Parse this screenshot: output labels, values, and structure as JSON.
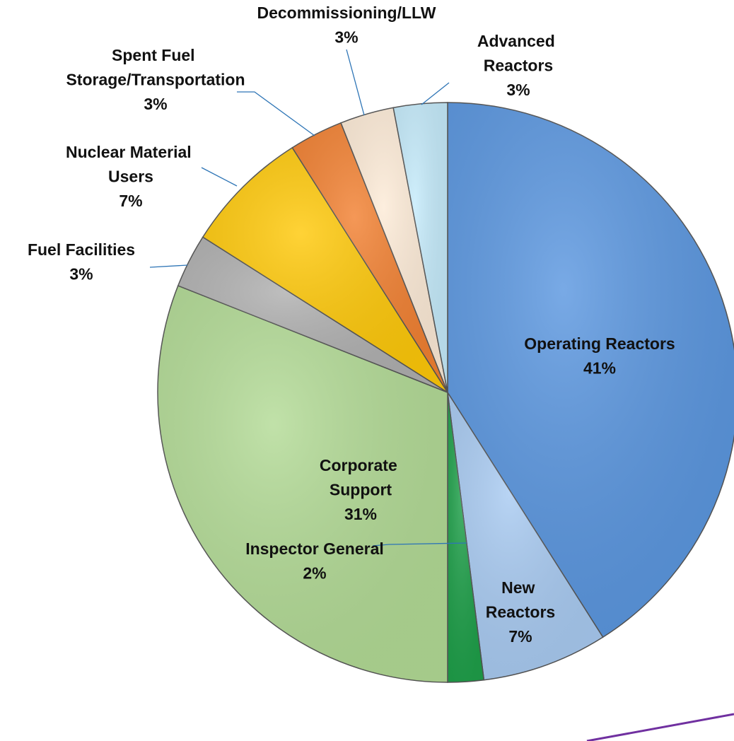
{
  "chart_data": {
    "type": "pie",
    "categories": [
      "Operating Reactors",
      "New Reactors",
      "Inspector General",
      "Corporate Support",
      "Fuel Facilities",
      "Nuclear Material Users",
      "Spent Fuel Storage/Transportation",
      "Decommissioning/LLW",
      "Advanced Reactors"
    ],
    "values": [
      41,
      7,
      2,
      31,
      3,
      7,
      3,
      3,
      3
    ],
    "value_labels": [
      "41%",
      "7%",
      "2%",
      "31%",
      "3%",
      "7%",
      "3%",
      "3%",
      "3%"
    ],
    "colors": [
      "#5b97e0",
      "#a9cbf2",
      "#1fa04a",
      "#b3db96",
      "#b0b0b0",
      "#ffc90a",
      "#f28132",
      "#fdebd7",
      "#c5ebfb"
    ]
  }
}
